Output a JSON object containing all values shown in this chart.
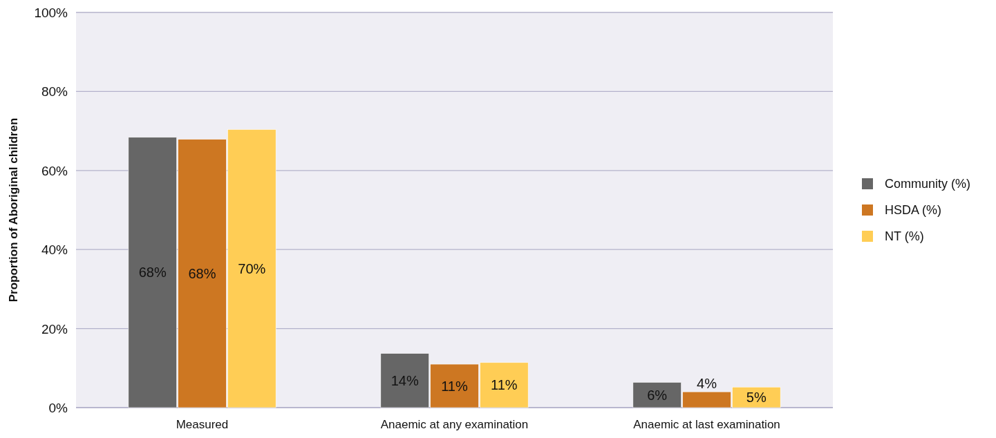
{
  "chart_data": {
    "type": "bar",
    "ylabel": "Proportion of Aboriginal children",
    "categories": [
      "Measured",
      "Anaemic at any examination",
      "Anaemic at last examination"
    ],
    "series": [
      {
        "name": "Community (%)",
        "color": "#666666",
        "values": [
          68.4,
          13.7,
          6.4
        ],
        "value_labels": [
          "68%",
          "14%",
          "6%"
        ]
      },
      {
        "name": "HSDA (%)",
        "color": "#cd7722",
        "values": [
          67.9,
          11.0,
          4.0
        ],
        "value_labels": [
          "68%",
          "11%",
          "4%"
        ]
      },
      {
        "name": "NT (%)",
        "color": "#ffcd55",
        "values": [
          70.4,
          11.4,
          5.2
        ],
        "value_labels": [
          "70%",
          "11%",
          "5%"
        ]
      }
    ],
    "ylim": [
      0,
      100
    ],
    "yticks": [
      {
        "value": 0,
        "label": "0%"
      },
      {
        "value": 20,
        "label": "20%"
      },
      {
        "value": 40,
        "label": "40%"
      },
      {
        "value": 60,
        "label": "60%"
      },
      {
        "value": 80,
        "label": "80%"
      },
      {
        "value": 100,
        "label": "100%"
      }
    ],
    "grid": "y",
    "legend": "right"
  }
}
